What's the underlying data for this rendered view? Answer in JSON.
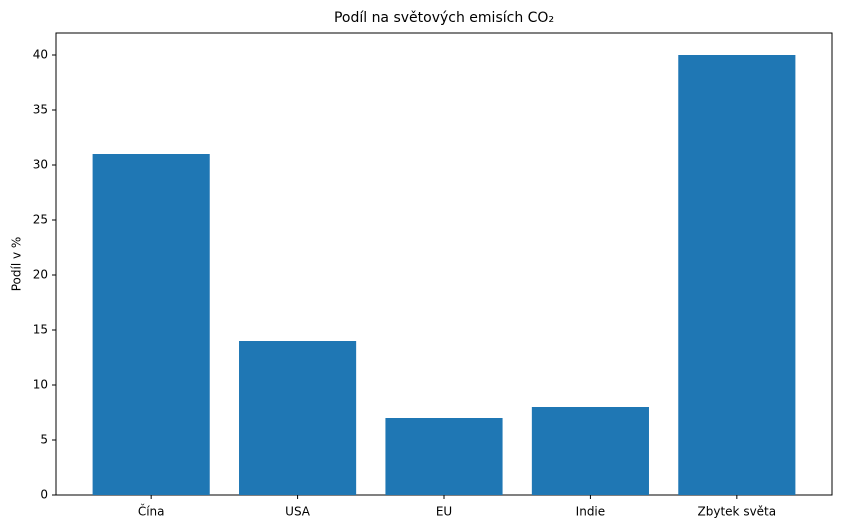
{
  "chart_data": {
    "type": "bar",
    "title": "Podíl na světových emisích CO₂",
    "y_label": "Podíl v %",
    "categories": [
      "Čína",
      "USA",
      "EU",
      "Indie",
      "Zbytek světa"
    ],
    "values": [
      31,
      14,
      7,
      8,
      40
    ],
    "color": "#1f77b4",
    "ylim": [
      0,
      42
    ],
    "yticks": [
      0,
      5,
      10,
      15,
      20,
      25,
      30,
      35,
      40
    ],
    "grid": false
  }
}
